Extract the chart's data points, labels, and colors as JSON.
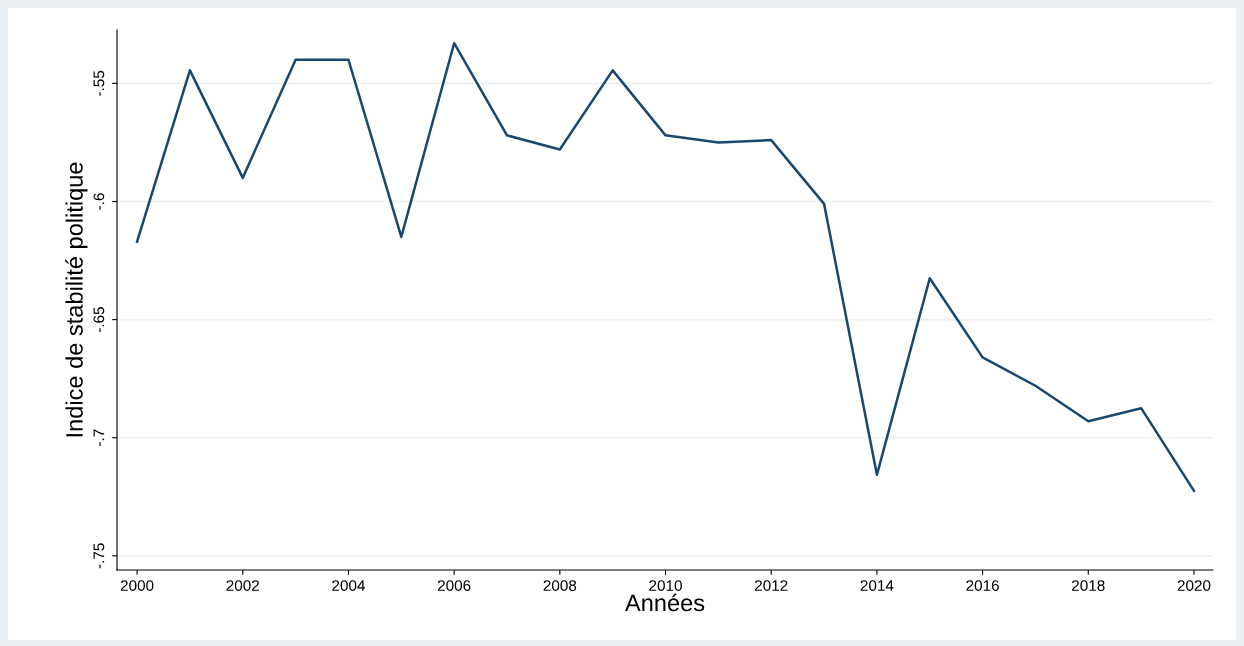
{
  "chart_data": {
    "type": "line",
    "xlabel": "Années",
    "ylabel": "Indice de stabilité politique",
    "x": [
      2000,
      2001,
      2002,
      2003,
      2004,
      2005,
      2006,
      2007,
      2008,
      2009,
      2010,
      2011,
      2012,
      2013,
      2014,
      2015,
      2016,
      2017,
      2018,
      2019,
      2020
    ],
    "series": [
      {
        "color": "#1a476f",
        "values": [
          -0.617,
          -0.5445,
          -0.59,
          -0.54,
          -0.54,
          -0.615,
          -0.533,
          -0.572,
          -0.578,
          -0.5445,
          -0.572,
          -0.575,
          -0.574,
          -0.601,
          -0.7157,
          -0.6325,
          -0.666,
          -0.678,
          -0.693,
          -0.6875,
          -0.7225
        ]
      }
    ],
    "xlim": [
      1999.62,
      2020.36
    ],
    "xticks": [
      2000,
      2002,
      2004,
      2006,
      2008,
      2010,
      2012,
      2014,
      2016,
      2018,
      2020
    ],
    "ylim": [
      -0.756,
      -0.5274
    ],
    "yticks": [
      {
        "value": -0.75,
        "label": "-.75"
      },
      {
        "value": -0.7,
        "label": "-.7"
      },
      {
        "value": -0.65,
        "label": "-.65"
      },
      {
        "value": -0.6,
        "label": "-.6"
      },
      {
        "value": -0.55,
        "label": "-.55"
      }
    ],
    "grid": "y",
    "marker": "none",
    "line_style": "solid"
  }
}
